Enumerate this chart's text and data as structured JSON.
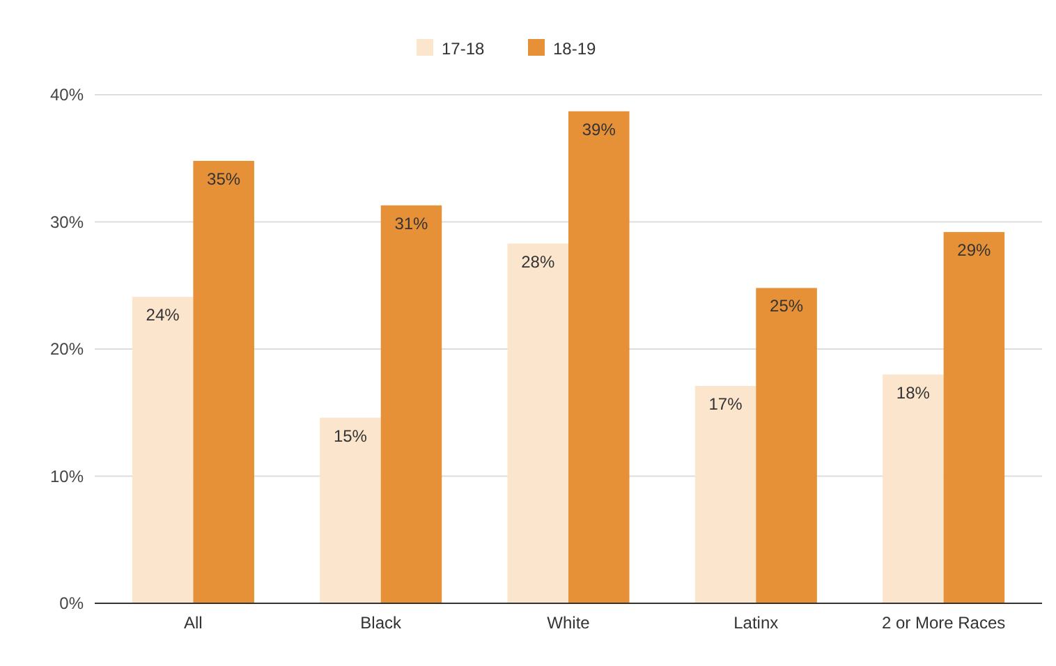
{
  "chart_data": {
    "type": "bar",
    "categories": [
      "All",
      "Black",
      "White",
      "Latinx",
      "2 or More Races"
    ],
    "series": [
      {
        "name": "17-18",
        "color": "#fce5cd",
        "values": [
          24.1,
          14.6,
          28.3,
          17.1,
          18.0
        ],
        "value_labels": [
          "24%",
          "15%",
          "28%",
          "17%",
          "18%"
        ]
      },
      {
        "name": "18-19",
        "color": "#e69138",
        "values": [
          34.8,
          31.3,
          38.7,
          24.8,
          29.2
        ],
        "value_labels": [
          "35%",
          "31%",
          "39%",
          "25%",
          "29%"
        ]
      }
    ],
    "ylim": [
      0,
      40
    ],
    "yticks": [
      {
        "value": 0,
        "label": "0%"
      },
      {
        "value": 10,
        "label": "10%"
      },
      {
        "value": 20,
        "label": "20%"
      },
      {
        "value": 30,
        "label": "30%"
      },
      {
        "value": 40,
        "label": "40%"
      }
    ],
    "grid": "y",
    "legend": "top"
  }
}
